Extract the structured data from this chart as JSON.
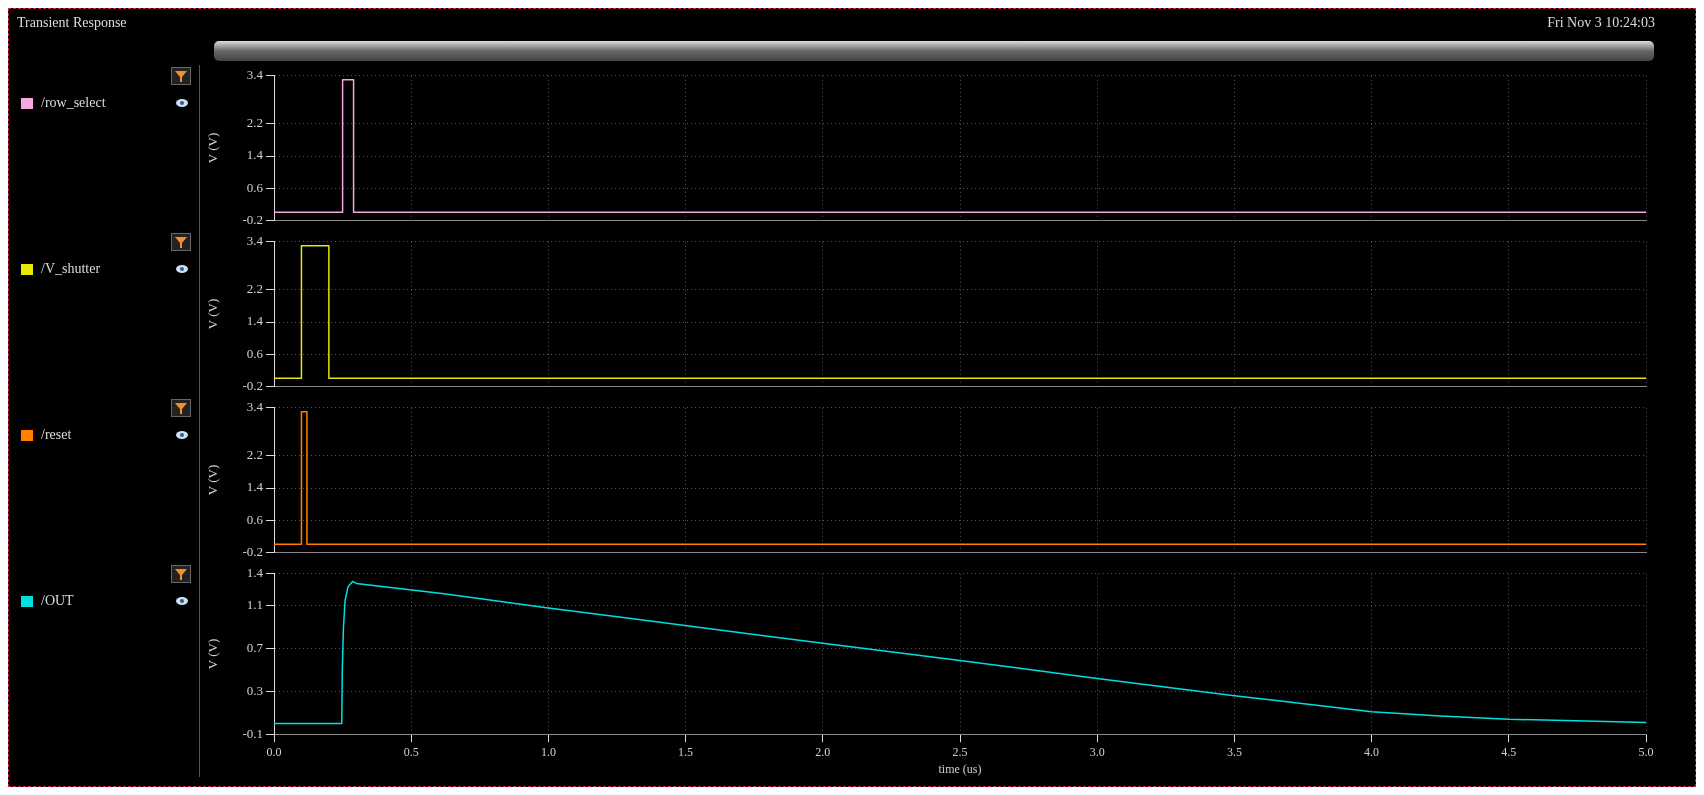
{
  "chart_data": [
    {
      "type": "line",
      "annotations": [
        "Transient Response",
        "Fri Nov 3 10:24:03"
      ],
      "ylabel": "V (V)",
      "legend": "left",
      "grid": true,
      "tick_labels": "y",
      "xlim": [
        0,
        5
      ],
      "xticks": [
        0,
        0.5,
        1,
        1.5,
        2,
        2.5,
        3,
        3.5,
        4,
        4.5,
        5
      ],
      "ylim": [
        -0.2,
        3.4
      ],
      "yticks": [
        -0.2,
        0.6,
        1.4,
        2.2,
        3.4
      ],
      "series": [
        {
          "name": "/row_select",
          "color": "#f4a8dc",
          "x": [
            0,
            0.25,
            0.25,
            0.29,
            0.29,
            5
          ],
          "values": [
            0,
            0,
            3.3,
            3.3,
            0,
            0
          ]
        }
      ]
    },
    {
      "type": "line",
      "ylabel": "V (V)",
      "legend": "left",
      "grid": true,
      "tick_labels": "y",
      "xlim": [
        0,
        5
      ],
      "xticks": [
        0,
        0.5,
        1,
        1.5,
        2,
        2.5,
        3,
        3.5,
        4,
        4.5,
        5
      ],
      "ylim": [
        -0.2,
        3.4
      ],
      "yticks": [
        -0.2,
        0.6,
        1.4,
        2.2,
        3.4
      ],
      "series": [
        {
          "name": "/V_shutter",
          "color": "#e8e800",
          "x": [
            0,
            0.1,
            0.1,
            0.2,
            0.2,
            5
          ],
          "values": [
            0,
            0,
            3.3,
            3.3,
            0,
            0
          ]
        }
      ]
    },
    {
      "type": "line",
      "ylabel": "V (V)",
      "legend": "left",
      "grid": true,
      "tick_labels": "y",
      "xlim": [
        0,
        5
      ],
      "xticks": [
        0,
        0.5,
        1,
        1.5,
        2,
        2.5,
        3,
        3.5,
        4,
        4.5,
        5
      ],
      "ylim": [
        -0.2,
        3.4
      ],
      "yticks": [
        -0.2,
        0.6,
        1.4,
        2.2,
        3.4
      ],
      "series": [
        {
          "name": "/reset",
          "color": "#ff8000",
          "x": [
            0,
            0.1,
            0.1,
            0.12,
            0.12,
            5
          ],
          "values": [
            0,
            0,
            3.3,
            3.3,
            0,
            0
          ]
        }
      ]
    },
    {
      "type": "line",
      "xlabel": "time (us)",
      "ylabel": "V (V)",
      "legend": "left",
      "grid": true,
      "xlim": [
        0,
        5
      ],
      "xticks": [
        {
          "value": 0,
          "label": "0.0"
        },
        0.5,
        {
          "value": 1,
          "label": "1.0"
        },
        1.5,
        {
          "value": 2,
          "label": "2.0"
        },
        2.5,
        {
          "value": 3,
          "label": "3.0"
        },
        3.5,
        {
          "value": 4,
          "label": "4.0"
        },
        4.5,
        {
          "value": 5,
          "label": "5.0"
        }
      ],
      "ylim": [
        -0.1,
        1.4
      ],
      "yticks": [
        -0.1,
        0.3,
        0.7,
        1.1,
        1.4
      ],
      "series": [
        {
          "name": "/OUT",
          "color": "#00e0e0",
          "x": [
            0,
            0.247,
            0.249,
            0.253,
            0.259,
            0.27,
            0.287,
            0.3,
            0.627,
            1.0,
            1.308,
            2.0,
            2.5,
            3.0,
            3.5,
            4.0,
            4.25,
            4.5,
            5.0
          ],
          "values": [
            0,
            0,
            0.52,
            0.89,
            1.15,
            1.28,
            1.33,
            1.31,
            1.21,
            1.08,
            0.98,
            0.75,
            0.59,
            0.42,
            0.26,
            0.11,
            0.07,
            0.04,
            0.01
          ]
        }
      ]
    }
  ]
}
